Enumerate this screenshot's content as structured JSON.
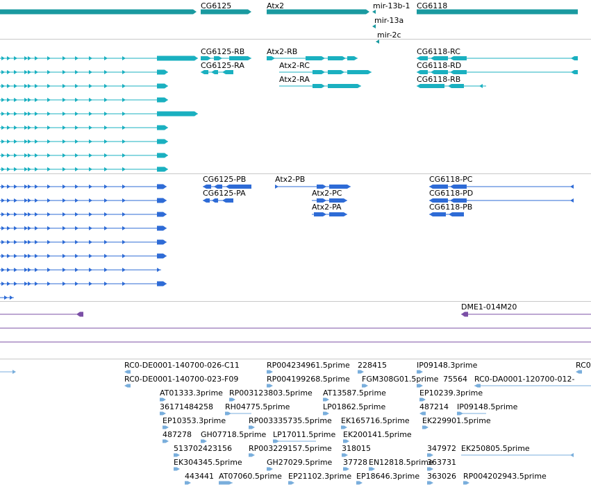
{
  "colors": {
    "gene": "#1a9aa0",
    "transcript_flybase": "#1ab0c0",
    "transcript_refseq": "#2e6bd6",
    "clone": "#7b4fa6",
    "est": "#79aedc",
    "separator": "#c8c8c8"
  },
  "tracks": {
    "genes": {
      "labels": [
        "CG6125",
        "Atx2",
        "mir-13b-1",
        "CG6118",
        "mir-13a",
        "mir-2c"
      ]
    },
    "flybase_transcripts": {
      "labels": [
        "CG6125-RB",
        "CG6125-RA",
        "Atx2-RB",
        "Atx2-RC",
        "Atx2-RA",
        "CG6118-RC",
        "CG6118-RD",
        "CG6118-RB"
      ]
    },
    "refseq_transcripts": {
      "labels": [
        "CG6125-PB",
        "CG6125-PA",
        "Atx2-PB",
        "Atx2-PC",
        "Atx2-PA",
        "CG6118-PC",
        "CG6118-PD",
        "CG6118-PB"
      ]
    },
    "clones": {
      "labels": [
        "DME1-014M20"
      ]
    },
    "ests": {
      "labels": [
        "RC0-DE0001-140700-026-C11",
        "RP004234961.5prime",
        "228415",
        "IP09148.3prime",
        "RC0",
        "RC0-DE0001-140700-023-F09",
        "RP004199268.5prime",
        "FGM308G01.5prime",
        "75564",
        "RC0-DA0001-120700-012-",
        "AT01333.3prime",
        "RP003123803.5prime",
        "AT13587.5prime",
        "EP10239.3prime",
        "36171484258",
        "RH04775.5prime",
        "LP01862.5prime",
        "487214",
        "IP09148.5prime",
        "EP10353.3prime",
        "RP003335735.5prime",
        "EK165716.5prime",
        "EK229901.5prime",
        "487278",
        "GH07718.5prime",
        "LP17011.5prime",
        "EK200141.5prime",
        "513702423156",
        "RP003229157.5prime",
        "318015",
        "347972",
        "EK250805.5prime",
        "EK304345.5prime",
        "GH27029.5prime",
        "37728",
        "EN12818.5prime",
        "363731",
        "443441",
        "AT07060.5prime",
        "EP21102.3prime",
        "EP18646.3prime",
        "363026",
        "RP004202943.5prime"
      ]
    }
  }
}
